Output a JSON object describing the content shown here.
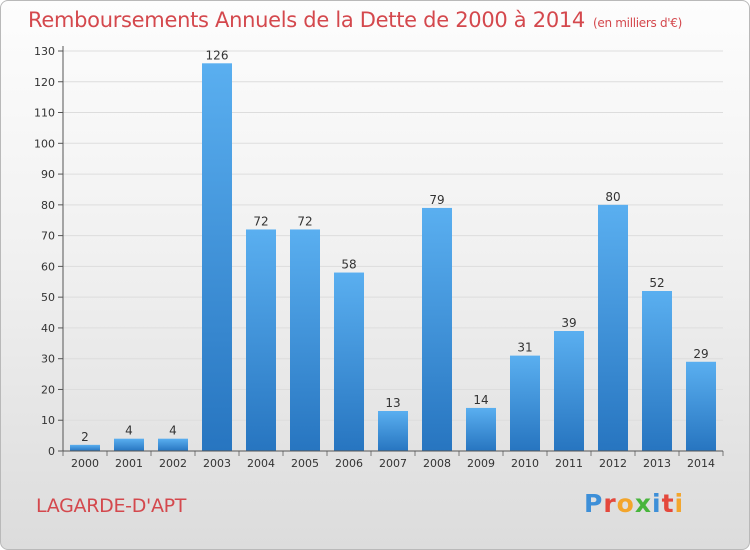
{
  "header": {
    "title": "Remboursements Annuels de la Dette de 2000 à 2014",
    "unit": "(en milliers d'€)"
  },
  "footer": {
    "place": "LAGARDE-D'APT",
    "brand": [
      "P",
      "r",
      "o",
      "x",
      "i",
      "t",
      "i"
    ]
  },
  "colors": {
    "bar_top": "#5aaff0",
    "bar_bottom": "#2775c0",
    "title": "#d4484d",
    "grid": "#dddddd"
  },
  "chart_data": {
    "type": "bar",
    "title": "Remboursements Annuels de la Dette de 2000 à 2014",
    "xlabel": "",
    "ylabel": "",
    "categories": [
      "2000",
      "2001",
      "2002",
      "2003",
      "2004",
      "2005",
      "2006",
      "2007",
      "2008",
      "2009",
      "2010",
      "2011",
      "2012",
      "2013",
      "2014"
    ],
    "values": [
      2,
      4,
      4,
      126,
      72,
      72,
      58,
      13,
      79,
      14,
      31,
      39,
      80,
      52,
      29
    ],
    "ylim": [
      0,
      130
    ],
    "yticks": [
      0,
      10,
      20,
      30,
      40,
      50,
      60,
      70,
      80,
      90,
      100,
      110,
      120,
      130
    ],
    "grid": true,
    "legend": "none"
  }
}
